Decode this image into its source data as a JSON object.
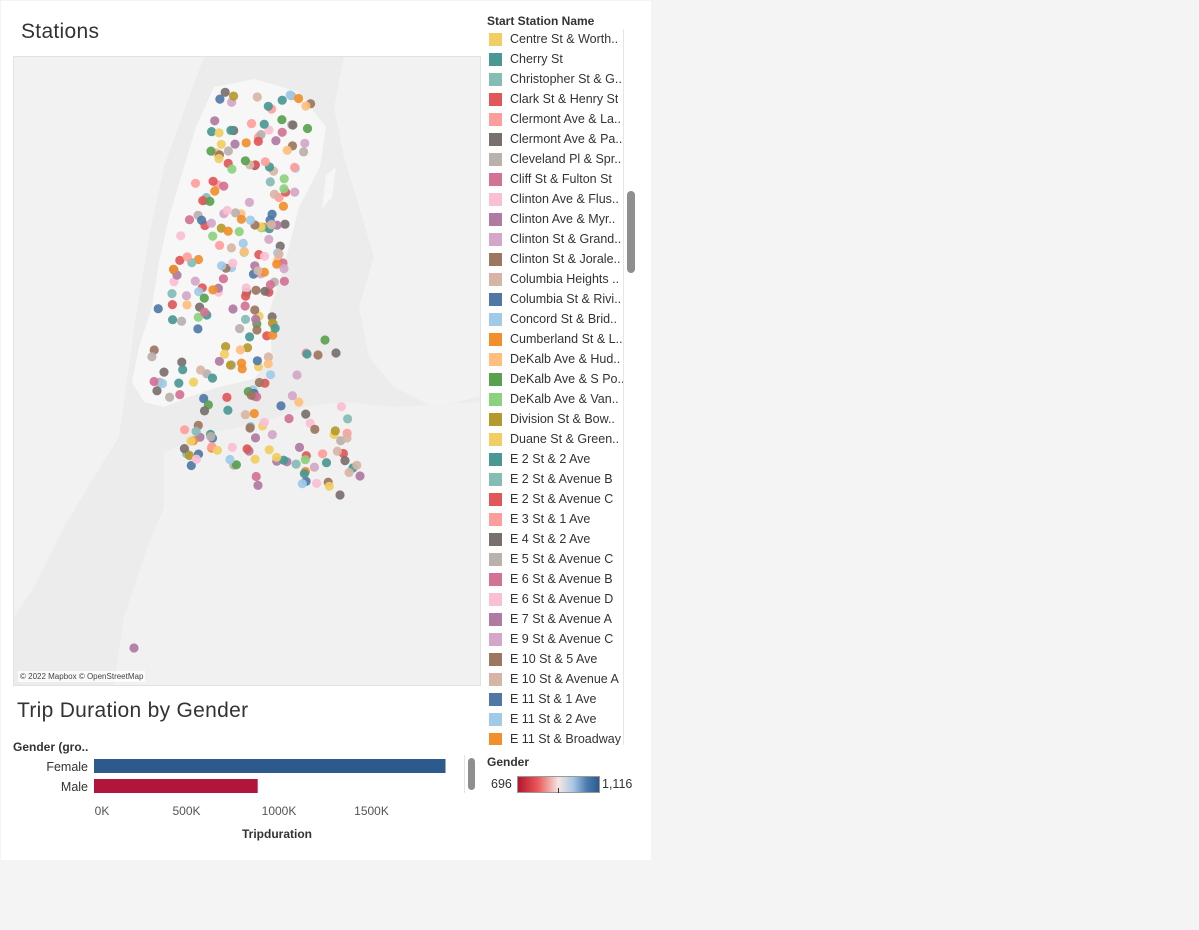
{
  "map_panel": {
    "title": "Stations",
    "attribution": "© 2022 Mapbox © OpenStreetMap"
  },
  "station_legend": {
    "title": "Start Station Name",
    "items": [
      {
        "label": "Centre St & Worth..",
        "color": "#f1ce63"
      },
      {
        "label": "Cherry St",
        "color": "#499894"
      },
      {
        "label": "Christopher St & G..",
        "color": "#86bcb6"
      },
      {
        "label": "Clark St & Henry St",
        "color": "#e15759"
      },
      {
        "label": "Clermont Ave & La..",
        "color": "#ff9d9a"
      },
      {
        "label": "Clermont Ave & Pa..",
        "color": "#79706e"
      },
      {
        "label": "Cleveland Pl & Spr..",
        "color": "#bab0ac"
      },
      {
        "label": "Cliff St & Fulton St",
        "color": "#d37295"
      },
      {
        "label": "Clinton Ave & Flus..",
        "color": "#fabfd2"
      },
      {
        "label": "Clinton Ave & Myr..",
        "color": "#b07aa1"
      },
      {
        "label": "Clinton St & Grand..",
        "color": "#d4a6c8"
      },
      {
        "label": "Clinton St & Jorale..",
        "color": "#9d7660"
      },
      {
        "label": "Columbia Heights ..",
        "color": "#d7b5a6"
      },
      {
        "label": "Columbia St & Rivi..",
        "color": "#4e79a7"
      },
      {
        "label": "Concord St & Brid..",
        "color": "#a0cbe8"
      },
      {
        "label": "Cumberland St & L..",
        "color": "#f28e2b"
      },
      {
        "label": "DeKalb Ave & Hud..",
        "color": "#ffbe7d"
      },
      {
        "label": "DeKalb Ave & S Po..",
        "color": "#59a14f"
      },
      {
        "label": "DeKalb Ave & Van..",
        "color": "#8cd17d"
      },
      {
        "label": "Division St & Bow..",
        "color": "#b6992d"
      },
      {
        "label": "Duane St & Green..",
        "color": "#f1ce63"
      },
      {
        "label": "E 2 St & 2 Ave",
        "color": "#499894"
      },
      {
        "label": "E 2 St & Avenue B",
        "color": "#86bcb6"
      },
      {
        "label": "E 2 St & Avenue C",
        "color": "#e15759"
      },
      {
        "label": "E 3 St & 1 Ave",
        "color": "#ff9d9a"
      },
      {
        "label": "E 4 St & 2 Ave",
        "color": "#79706e"
      },
      {
        "label": "E 5 St & Avenue C",
        "color": "#bab0ac"
      },
      {
        "label": "E 6 St & Avenue B",
        "color": "#d37295"
      },
      {
        "label": "E 6 St & Avenue D",
        "color": "#fabfd2"
      },
      {
        "label": "E 7 St & Avenue A",
        "color": "#b07aa1"
      },
      {
        "label": "E 9 St & Avenue C",
        "color": "#d4a6c8"
      },
      {
        "label": "E 10 St & 5 Ave",
        "color": "#9d7660"
      },
      {
        "label": "E 10 St & Avenue A",
        "color": "#d7b5a6"
      },
      {
        "label": "E 11 St & 1 Ave",
        "color": "#4e79a7"
      },
      {
        "label": "E 11 St & 2 Ave",
        "color": "#a0cbe8"
      },
      {
        "label": "E 11 St & Broadway",
        "color": "#f28e2b"
      }
    ]
  },
  "gender_panel": {
    "title": "Trip Duration by Gender",
    "header": "Gender (gro.."
  },
  "chart_data": {
    "type": "bar",
    "orientation": "horizontal",
    "categories": [
      "Female",
      "Male"
    ],
    "values": [
      1900000,
      885000
    ],
    "bar_colors": [
      "#2c5a8c",
      "#b0153b"
    ],
    "xlabel": "Tripduration",
    "ylabel": "",
    "xlim": [
      0,
      2000000
    ],
    "ticks": [
      0,
      500000,
      1000000,
      1500000
    ],
    "tick_labels": [
      "0K",
      "500K",
      "1000K",
      "1500K"
    ],
    "grid": false
  },
  "color_legend": {
    "title": "Gender",
    "min": "696",
    "max": "1,116"
  }
}
